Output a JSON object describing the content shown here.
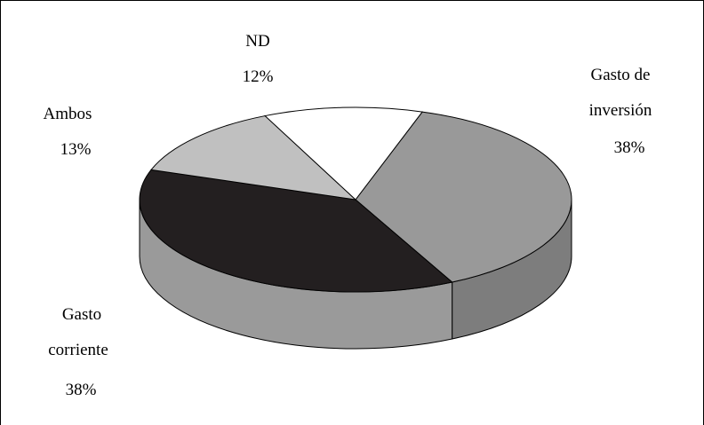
{
  "chart_data": {
    "type": "pie",
    "style": "3d",
    "title": "",
    "slices": [
      {
        "name": "Gasto de inversión",
        "value": 38,
        "percent_label": "38%",
        "color": "#999999"
      },
      {
        "name": "Gasto corriente",
        "value": 38,
        "percent_label": "38%",
        "color": "#231f20"
      },
      {
        "name": "Ambos",
        "value": 13,
        "percent_label": "13%",
        "color": "#c0c0c0"
      },
      {
        "name": "ND",
        "value": 12,
        "percent_label": "12%",
        "color": "#ffffff"
      }
    ],
    "legend": "none",
    "data_labels": "outside"
  },
  "labels": {
    "nd_name": "ND",
    "nd_pct": "12%",
    "inversion_line1": "Gasto de",
    "inversion_line2": "inversión",
    "inversion_pct": "38%",
    "ambos_name": "Ambos",
    "ambos_pct": "13%",
    "corriente_line1": "Gasto",
    "corriente_line2": "corriente",
    "corriente_pct": "38%"
  }
}
